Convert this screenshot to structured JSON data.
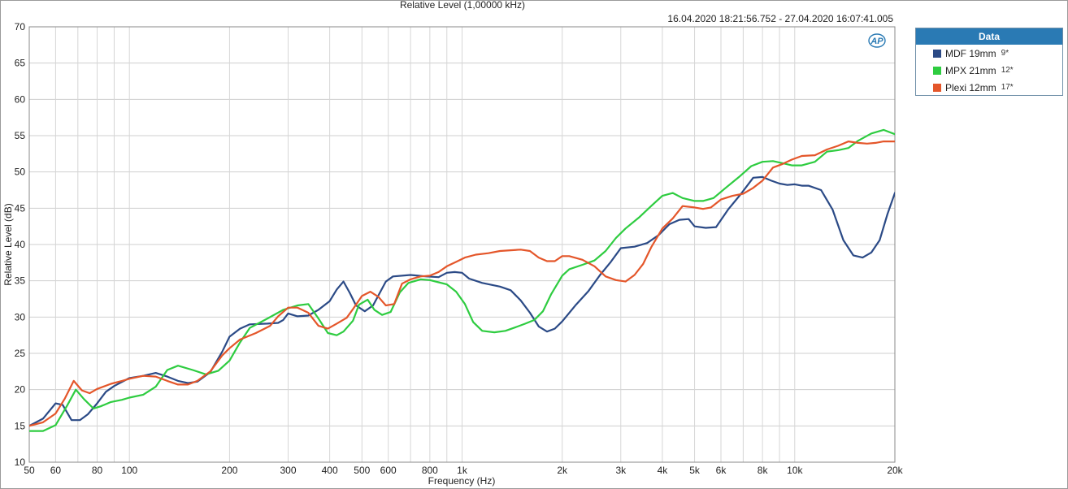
{
  "chart_data": {
    "type": "line",
    "title": "Relative Level (1,00000 kHz)",
    "timestamp": "16.04.2020 18:21:56.752 - 27.04.2020 16:07:41.005",
    "xlabel": "Frequency (Hz)",
    "ylabel": "Relative Level (dB)",
    "xscale": "log",
    "xlim": [
      50,
      20000
    ],
    "ylim": [
      10,
      70
    ],
    "grid": true,
    "legend_position": "right",
    "legend_title": "Data",
    "x_tick_values": [
      50,
      60,
      80,
      100,
      200,
      300,
      400,
      500,
      600,
      800,
      1000,
      2000,
      3000,
      4000,
      5000,
      6000,
      8000,
      10000,
      20000
    ],
    "x_tick_labels": [
      "50",
      "60",
      "80",
      "100",
      "200",
      "300",
      "400",
      "500",
      "600",
      "800",
      "1k",
      "2k",
      "3k",
      "4k",
      "5k",
      "6k",
      "8k",
      "10k",
      "20k"
    ],
    "y_ticks": [
      10,
      15,
      20,
      25,
      30,
      35,
      40,
      45,
      50,
      55,
      60,
      65,
      70
    ],
    "series": [
      {
        "name": "MDF 19mm",
        "suffix": "9*",
        "color": "#2b4a86",
        "points": [
          [
            50,
            15.0
          ],
          [
            55,
            16.0
          ],
          [
            60,
            18.1
          ],
          [
            63,
            17.9
          ],
          [
            67,
            15.8
          ],
          [
            71,
            15.8
          ],
          [
            75,
            16.6
          ],
          [
            80,
            18.1
          ],
          [
            85,
            19.7
          ],
          [
            90,
            20.5
          ],
          [
            100,
            21.6
          ],
          [
            110,
            21.9
          ],
          [
            120,
            22.3
          ],
          [
            130,
            21.8
          ],
          [
            140,
            21.2
          ],
          [
            150,
            20.9
          ],
          [
            160,
            21.1
          ],
          [
            175,
            22.4
          ],
          [
            190,
            25.2
          ],
          [
            200,
            27.3
          ],
          [
            215,
            28.4
          ],
          [
            230,
            29.0
          ],
          [
            260,
            29.1
          ],
          [
            280,
            29.2
          ],
          [
            290,
            29.6
          ],
          [
            300,
            30.5
          ],
          [
            320,
            30.1
          ],
          [
            345,
            30.2
          ],
          [
            370,
            31.0
          ],
          [
            400,
            32.2
          ],
          [
            420,
            33.8
          ],
          [
            440,
            34.9
          ],
          [
            460,
            33.3
          ],
          [
            480,
            31.6
          ],
          [
            510,
            30.8
          ],
          [
            540,
            31.6
          ],
          [
            590,
            34.9
          ],
          [
            620,
            35.6
          ],
          [
            700,
            35.8
          ],
          [
            780,
            35.6
          ],
          [
            850,
            35.5
          ],
          [
            900,
            36.1
          ],
          [
            950,
            36.2
          ],
          [
            1000,
            36.1
          ],
          [
            1050,
            35.3
          ],
          [
            1150,
            34.7
          ],
          [
            1300,
            34.2
          ],
          [
            1400,
            33.7
          ],
          [
            1500,
            32.3
          ],
          [
            1600,
            30.6
          ],
          [
            1700,
            28.7
          ],
          [
            1800,
            28.0
          ],
          [
            1900,
            28.4
          ],
          [
            2000,
            29.4
          ],
          [
            2200,
            31.7
          ],
          [
            2400,
            33.6
          ],
          [
            2600,
            35.8
          ],
          [
            2800,
            37.6
          ],
          [
            3000,
            39.5
          ],
          [
            3300,
            39.7
          ],
          [
            3600,
            40.2
          ],
          [
            3900,
            41.3
          ],
          [
            4200,
            42.8
          ],
          [
            4500,
            43.4
          ],
          [
            4800,
            43.5
          ],
          [
            5000,
            42.5
          ],
          [
            5400,
            42.3
          ],
          [
            5800,
            42.4
          ],
          [
            6300,
            44.8
          ],
          [
            6900,
            47.0
          ],
          [
            7500,
            49.2
          ],
          [
            8000,
            49.3
          ],
          [
            8500,
            48.8
          ],
          [
            9000,
            48.4
          ],
          [
            9500,
            48.2
          ],
          [
            10000,
            48.3
          ],
          [
            10500,
            48.1
          ],
          [
            11000,
            48.1
          ],
          [
            12000,
            47.5
          ],
          [
            13000,
            44.8
          ],
          [
            14000,
            40.6
          ],
          [
            15000,
            38.5
          ],
          [
            16000,
            38.2
          ],
          [
            17000,
            38.9
          ],
          [
            18000,
            40.6
          ],
          [
            19000,
            44.2
          ],
          [
            20000,
            47.1
          ],
          [
            21000,
            48.5
          ]
        ]
      },
      {
        "name": "MPX 21mm",
        "suffix": "12*",
        "color": "#2ecc40",
        "points": [
          [
            50,
            14.3
          ],
          [
            55,
            14.3
          ],
          [
            60,
            15.1
          ],
          [
            65,
            17.8
          ],
          [
            69,
            20.0
          ],
          [
            73,
            18.7
          ],
          [
            78,
            17.4
          ],
          [
            82,
            17.7
          ],
          [
            88,
            18.3
          ],
          [
            95,
            18.6
          ],
          [
            100,
            18.9
          ],
          [
            110,
            19.3
          ],
          [
            120,
            20.4
          ],
          [
            130,
            22.7
          ],
          [
            140,
            23.3
          ],
          [
            155,
            22.7
          ],
          [
            170,
            22.1
          ],
          [
            185,
            22.6
          ],
          [
            200,
            24.0
          ],
          [
            215,
            26.5
          ],
          [
            230,
            28.5
          ],
          [
            260,
            29.8
          ],
          [
            290,
            31.0
          ],
          [
            320,
            31.6
          ],
          [
            345,
            31.8
          ],
          [
            370,
            29.8
          ],
          [
            395,
            27.8
          ],
          [
            420,
            27.5
          ],
          [
            440,
            28.0
          ],
          [
            470,
            29.5
          ],
          [
            490,
            31.7
          ],
          [
            520,
            32.4
          ],
          [
            545,
            31.0
          ],
          [
            575,
            30.3
          ],
          [
            610,
            30.7
          ],
          [
            650,
            33.4
          ],
          [
            690,
            34.7
          ],
          [
            750,
            35.2
          ],
          [
            800,
            35.1
          ],
          [
            850,
            34.8
          ],
          [
            900,
            34.5
          ],
          [
            960,
            33.5
          ],
          [
            1020,
            31.8
          ],
          [
            1080,
            29.3
          ],
          [
            1150,
            28.1
          ],
          [
            1250,
            27.9
          ],
          [
            1350,
            28.1
          ],
          [
            1450,
            28.6
          ],
          [
            1550,
            29.1
          ],
          [
            1650,
            29.6
          ],
          [
            1750,
            30.8
          ],
          [
            1850,
            33.1
          ],
          [
            2000,
            35.7
          ],
          [
            2100,
            36.6
          ],
          [
            2300,
            37.2
          ],
          [
            2500,
            37.8
          ],
          [
            2700,
            39.1
          ],
          [
            2900,
            40.9
          ],
          [
            3100,
            42.2
          ],
          [
            3400,
            43.7
          ],
          [
            3700,
            45.3
          ],
          [
            4000,
            46.7
          ],
          [
            4300,
            47.1
          ],
          [
            4600,
            46.4
          ],
          [
            5000,
            46.0
          ],
          [
            5300,
            46.0
          ],
          [
            5700,
            46.4
          ],
          [
            6200,
            47.8
          ],
          [
            6800,
            49.3
          ],
          [
            7400,
            50.8
          ],
          [
            8000,
            51.4
          ],
          [
            8600,
            51.5
          ],
          [
            9200,
            51.2
          ],
          [
            9800,
            50.9
          ],
          [
            10500,
            50.9
          ],
          [
            11500,
            51.4
          ],
          [
            12500,
            52.8
          ],
          [
            13500,
            53.0
          ],
          [
            14500,
            53.3
          ],
          [
            15500,
            54.3
          ],
          [
            17000,
            55.3
          ],
          [
            18500,
            55.8
          ],
          [
            20000,
            55.2
          ],
          [
            21000,
            54.8
          ]
        ]
      },
      {
        "name": "Plexi 12mm",
        "suffix": "17*",
        "color": "#e4562a",
        "points": [
          [
            50,
            15.0
          ],
          [
            55,
            15.5
          ],
          [
            60,
            16.7
          ],
          [
            64,
            18.8
          ],
          [
            68,
            21.2
          ],
          [
            72,
            19.9
          ],
          [
            76,
            19.5
          ],
          [
            80,
            20.1
          ],
          [
            88,
            20.8
          ],
          [
            95,
            21.2
          ],
          [
            100,
            21.5
          ],
          [
            110,
            21.9
          ],
          [
            120,
            21.8
          ],
          [
            130,
            21.2
          ],
          [
            140,
            20.7
          ],
          [
            150,
            20.7
          ],
          [
            160,
            21.2
          ],
          [
            175,
            22.5
          ],
          [
            190,
            24.7
          ],
          [
            200,
            25.7
          ],
          [
            215,
            26.9
          ],
          [
            240,
            27.8
          ],
          [
            265,
            28.8
          ],
          [
            280,
            30.1
          ],
          [
            300,
            31.3
          ],
          [
            320,
            31.3
          ],
          [
            345,
            30.6
          ],
          [
            370,
            28.8
          ],
          [
            395,
            28.4
          ],
          [
            420,
            29.1
          ],
          [
            450,
            29.9
          ],
          [
            470,
            31.1
          ],
          [
            500,
            32.9
          ],
          [
            530,
            33.5
          ],
          [
            560,
            32.8
          ],
          [
            590,
            31.6
          ],
          [
            625,
            31.8
          ],
          [
            660,
            34.6
          ],
          [
            700,
            35.2
          ],
          [
            750,
            35.6
          ],
          [
            800,
            35.7
          ],
          [
            850,
            36.2
          ],
          [
            900,
            37.0
          ],
          [
            960,
            37.6
          ],
          [
            1020,
            38.2
          ],
          [
            1100,
            38.6
          ],
          [
            1200,
            38.8
          ],
          [
            1300,
            39.1
          ],
          [
            1400,
            39.2
          ],
          [
            1500,
            39.3
          ],
          [
            1600,
            39.1
          ],
          [
            1700,
            38.2
          ],
          [
            1800,
            37.7
          ],
          [
            1900,
            37.7
          ],
          [
            2000,
            38.4
          ],
          [
            2100,
            38.4
          ],
          [
            2300,
            37.9
          ],
          [
            2500,
            37.0
          ],
          [
            2700,
            35.6
          ],
          [
            2900,
            35.1
          ],
          [
            3100,
            34.9
          ],
          [
            3300,
            35.8
          ],
          [
            3500,
            37.3
          ],
          [
            3700,
            39.6
          ],
          [
            4000,
            42.2
          ],
          [
            4300,
            43.6
          ],
          [
            4600,
            45.3
          ],
          [
            5000,
            45.1
          ],
          [
            5300,
            44.9
          ],
          [
            5600,
            45.1
          ],
          [
            6000,
            46.2
          ],
          [
            6500,
            46.7
          ],
          [
            7000,
            47.0
          ],
          [
            7500,
            47.8
          ],
          [
            8000,
            48.8
          ],
          [
            8600,
            50.6
          ],
          [
            9200,
            51.1
          ],
          [
            9800,
            51.7
          ],
          [
            10500,
            52.2
          ],
          [
            11500,
            52.3
          ],
          [
            12500,
            53.1
          ],
          [
            13500,
            53.6
          ],
          [
            14500,
            54.2
          ],
          [
            15500,
            54.0
          ],
          [
            16500,
            53.9
          ],
          [
            17500,
            54.0
          ],
          [
            18500,
            54.2
          ],
          [
            20000,
            54.2
          ],
          [
            21000,
            53.6
          ]
        ]
      }
    ]
  }
}
